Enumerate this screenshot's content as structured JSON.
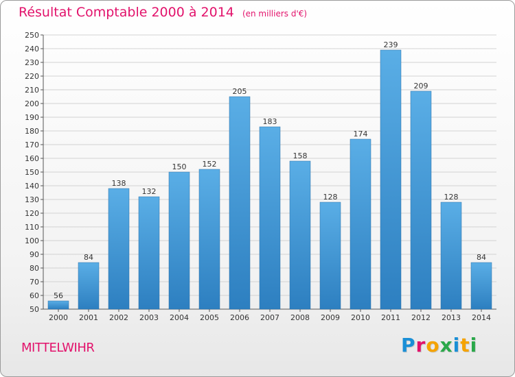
{
  "header": {
    "title": "Résultat Comptable 2000 à 2014",
    "unit": "(en milliers d'€)"
  },
  "footer": {
    "city": "MITTELWIHR",
    "logo": "Proxiti",
    "logo_letter_colors": [
      "#1a8fd6",
      "#e2126b",
      "#f5a300",
      "#2aa84a",
      "#1a8fd6",
      "#f5a300",
      "#2aa84a"
    ]
  },
  "colors": {
    "title": "#e2126b",
    "bar_top": "#5aaee6",
    "bar_bottom": "#2d7fc0",
    "grid": "#d2d2d2"
  },
  "chart_data": {
    "type": "bar",
    "title": "Résultat Comptable 2000 à 2014",
    "categories": [
      "2000",
      "2001",
      "2002",
      "2003",
      "2004",
      "2005",
      "2006",
      "2007",
      "2008",
      "2009",
      "2010",
      "2011",
      "2012",
      "2013",
      "2014"
    ],
    "values": [
      56,
      84,
      138,
      132,
      150,
      152,
      205,
      183,
      158,
      128,
      174,
      239,
      209,
      128,
      84
    ],
    "ylim": [
      50,
      250
    ],
    "ytick_step": 10,
    "grid": true,
    "xlabel": "",
    "ylabel": ""
  }
}
